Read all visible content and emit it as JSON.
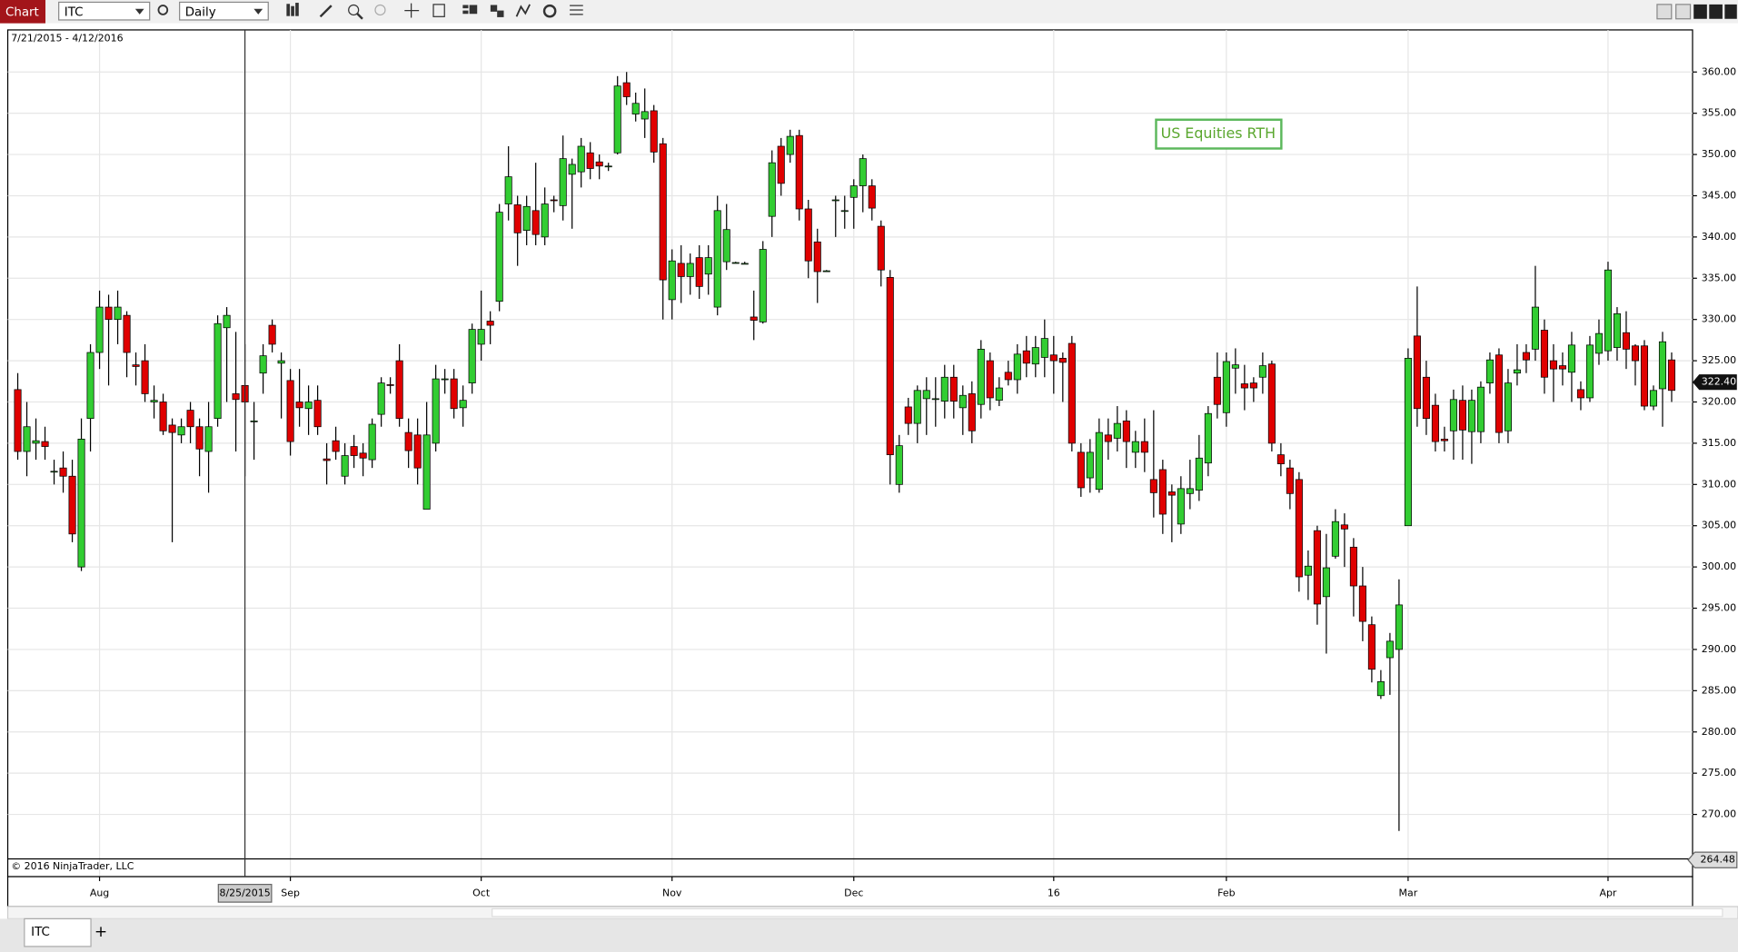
{
  "window": {
    "tab": "Chart",
    "symbol": "ITC",
    "interval": "Daily",
    "bottom_tab": "ITC",
    "new_tab": "+"
  },
  "chart_data": {
    "type": "candlestick",
    "range_label": "7/21/2015 - 4/12/2016",
    "session_label": "US Equities RTH",
    "copyright": "© 2016 NinjaTrader, LLC",
    "up_color": "#32cd32",
    "down_color": "#e00000",
    "grid": true,
    "open": [
      321.5,
      314,
      315,
      315.2,
      311.5,
      312,
      311,
      300,
      318,
      326,
      331.5,
      330,
      330.5,
      324.5,
      325,
      320,
      320,
      317.2,
      316,
      319,
      317,
      314,
      318,
      329,
      321,
      322,
      317.7,
      323.5,
      329.3,
      324.7,
      322.6,
      320,
      319.2,
      320.2,
      313.1,
      315.3,
      311,
      314.6,
      313.8,
      313,
      318.5,
      322.1,
      325,
      316.3,
      316,
      307,
      315,
      322.7,
      322.8,
      319.3,
      322.3,
      327,
      329.8,
      332.2,
      344,
      343.9,
      340.8,
      343.2,
      340,
      344.5,
      343.8,
      347.6,
      347.9,
      350.2,
      349.1,
      348.6,
      350.2,
      358.7,
      354.9,
      354.3,
      355.3,
      351.3,
      332.4,
      336.8,
      335.2,
      337.5,
      335.5,
      331.5,
      337,
      336.9,
      336.8,
      330.3,
      329.7,
      342.5,
      351,
      350,
      352.3,
      343.4,
      339.4,
      335.9,
      344.5,
      343.2,
      344.8,
      346.2,
      346.2,
      341.3,
      335.1,
      310,
      319.4,
      317.4,
      320.4,
      320.3,
      320.1,
      323,
      319.3,
      321,
      319.7,
      325,
      320.2,
      323.6,
      322.7,
      326.2,
      324.6,
      325.4,
      325.7,
      325.3,
      327.1,
      313.9,
      310.8,
      309.4,
      316,
      315.6,
      317.7,
      313.9,
      315.2,
      310.6,
      311.8,
      309.1,
      305.2,
      308.9,
      309.3,
      312.6,
      323,
      318.7,
      324.1,
      322.2,
      322.3,
      323,
      324.6,
      313.6,
      312,
      310.6,
      299,
      304.4,
      296.4,
      301.3,
      305.1,
      302.4,
      297.7,
      293,
      284.4,
      289,
      290,
      305,
      328,
      323,
      319.6,
      315.5,
      316.5,
      320.2,
      316.4,
      316.4,
      322.3,
      325.7,
      316.5,
      323.5,
      326,
      326.4,
      328.7,
      325,
      324.4,
      323.6,
      321.5,
      320.5,
      325.9,
      326.2,
      326.6,
      328.4,
      326.8,
      326.8,
      319.5,
      321.6,
      325.1
    ],
    "high": [
      323.5,
      320,
      318,
      317,
      313,
      314,
      313,
      318,
      327,
      333.5,
      333,
      333.5,
      331,
      326,
      327,
      322,
      321,
      318,
      318,
      320,
      318,
      320,
      330.5,
      331.5,
      328.5,
      327,
      320,
      327,
      330,
      326,
      324,
      324,
      322,
      322,
      315,
      317,
      315,
      316,
      315,
      318,
      323,
      323,
      327,
      318,
      318,
      320,
      324.5,
      324,
      324,
      322,
      329.5,
      333.5,
      331,
      344,
      351,
      345,
      345,
      349,
      346,
      345,
      352.3,
      349.5,
      352,
      351.5,
      350,
      349,
      359.5,
      360,
      357.5,
      358,
      356,
      352,
      338.5,
      339,
      338,
      339,
      339,
      345,
      344,
      337,
      337,
      333.5,
      339.5,
      350.5,
      352,
      353,
      353,
      344.5,
      341,
      336,
      345,
      345,
      347,
      350,
      347,
      342,
      336,
      316,
      320.5,
      322,
      323,
      323,
      324.5,
      324.5,
      322,
      322.5,
      327.5,
      326,
      323,
      325,
      327,
      328,
      328,
      330,
      328,
      326,
      328,
      315,
      315.5,
      318,
      318,
      319.5,
      319,
      316.5,
      318,
      319,
      313,
      310,
      311,
      313,
      316,
      319.5,
      326,
      326,
      326.5,
      324.5,
      323,
      326,
      325,
      315,
      313,
      311.5,
      302,
      305,
      304,
      307,
      306.5,
      303.5,
      300,
      294,
      287.5,
      292,
      298.5,
      326.5,
      334,
      325,
      321,
      317,
      321.5,
      322,
      321.5,
      322.5,
      326,
      326.5,
      324,
      327,
      327,
      336.5,
      330,
      327,
      326,
      328.5,
      322.5,
      328,
      330,
      337,
      331.5,
      331,
      327,
      327.5,
      322,
      328.5,
      326
    ],
    "low": [
      313,
      311,
      313,
      313,
      310,
      309,
      303,
      299.5,
      314,
      324,
      322,
      327,
      323,
      322,
      320,
      318,
      316,
      303,
      315,
      315,
      311,
      309,
      317,
      320,
      314,
      311,
      313,
      321,
      326,
      318,
      313.5,
      317,
      316,
      316,
      310,
      313,
      310,
      312,
      311,
      312,
      317,
      321,
      317,
      312,
      310,
      307,
      314,
      321,
      318,
      317,
      321,
      325,
      327,
      331,
      342,
      336.5,
      339,
      339,
      339,
      343,
      342,
      341,
      346,
      347,
      347,
      348,
      350,
      356,
      354,
      352,
      349,
      330,
      330,
      332,
      333,
      332.5,
      333,
      330.5,
      336,
      336.8,
      336.7,
      327.5,
      329.5,
      340,
      345,
      349,
      342,
      335,
      332,
      335.8,
      340,
      341,
      341,
      343,
      342,
      334,
      310,
      309,
      316,
      315,
      316,
      317,
      318,
      318,
      316,
      315,
      318,
      319,
      319.5,
      322,
      321,
      323,
      323,
      323,
      321,
      320,
      314,
      308.5,
      309,
      309,
      313,
      314,
      312,
      312,
      311.5,
      306,
      304,
      303,
      304,
      307,
      308,
      311,
      318,
      317,
      321,
      319,
      320,
      321,
      314,
      311,
      307,
      297,
      296,
      293,
      289.5,
      301,
      300,
      294,
      291,
      286,
      284,
      284.5,
      268,
      305,
      317,
      316,
      314,
      314,
      313,
      313,
      312.5,
      315,
      321,
      315,
      315,
      322,
      323.5,
      325,
      321,
      320,
      322,
      320,
      319,
      320,
      324.5,
      325,
      325,
      324,
      322,
      319,
      319,
      317,
      320
    ],
    "close": [
      314,
      317,
      315.3,
      314.6,
      311.6,
      311,
      304,
      315.5,
      326,
      331.5,
      330,
      331.5,
      326,
      324.3,
      321,
      320.2,
      316.5,
      316.3,
      317,
      317,
      314.3,
      317,
      329.5,
      330.5,
      320.3,
      320,
      317.7,
      325.6,
      327,
      325,
      315.2,
      319.3,
      320,
      317,
      312.9,
      314,
      313.5,
      313.5,
      313.2,
      317.3,
      322.3,
      322,
      318,
      314.1,
      312,
      316,
      322.8,
      322.8,
      319.2,
      320.2,
      328.8,
      328.8,
      329.3,
      343,
      347.3,
      340.5,
      343.7,
      340.3,
      344,
      344.4,
      349.5,
      348.8,
      351,
      348.3,
      348.6,
      348.6,
      358.3,
      357,
      356.2,
      355.2,
      350.3,
      334.8,
      337.1,
      335.2,
      336.8,
      334,
      337.5,
      343.2,
      340.9,
      336.9,
      336.8,
      329.9,
      338.5,
      349,
      346.5,
      352.2,
      343.4,
      337.1,
      335.8,
      335.9,
      344.5,
      343.2,
      346.2,
      349.5,
      343.5,
      336,
      313.6,
      314.7,
      317.4,
      321.4,
      321.4,
      320.4,
      323,
      320.1,
      320.8,
      316.5,
      326.4,
      320.5,
      321.7,
      322.7,
      325.8,
      324.7,
      326.6,
      327.7,
      325,
      324.8,
      315,
      309.6,
      313.9,
      316.3,
      315.2,
      317.4,
      315.2,
      315.2,
      313.9,
      309,
      306.4,
      308.7,
      309.5,
      309.5,
      313.2,
      318.6,
      319.7,
      324.9,
      324.5,
      321.7,
      321.7,
      324.4,
      315,
      312.5,
      308.9,
      298.8,
      300.1,
      295.5,
      299.9,
      305.5,
      304.6,
      297.7,
      293.4,
      287.6,
      286.1,
      291,
      295.4,
      325.3,
      319.2,
      318,
      315.2,
      315.3,
      320.3,
      316.6,
      320.2,
      321.8,
      325.1,
      316.3,
      322.3,
      323.9,
      325.1,
      331.5,
      323,
      324,
      324,
      326.9,
      320.5,
      326.9,
      328.3,
      336,
      330.7,
      326.4,
      325,
      319.5,
      321.4,
      327.3,
      321.4
    ],
    "xlim": [
      -1.1,
      184.3
    ],
    "xticks": [
      {
        "value": 9,
        "label": "Aug"
      },
      {
        "value": 30,
        "label": "Sep"
      },
      {
        "value": 51,
        "label": "Oct"
      },
      {
        "value": 72,
        "label": "Nov"
      },
      {
        "value": 92,
        "label": "Dec"
      },
      {
        "value": 114,
        "label": "16"
      },
      {
        "value": 133,
        "label": "Feb"
      },
      {
        "value": 153,
        "label": "Mar"
      },
      {
        "value": 175,
        "label": "Apr"
      }
    ],
    "ylim": [
      262.46,
      365.1
    ],
    "yticks": [
      {
        "value": 270,
        "label": "270.00"
      },
      {
        "value": 275,
        "label": "275.00"
      },
      {
        "value": 280,
        "label": "280.00"
      },
      {
        "value": 285,
        "label": "285.00"
      },
      {
        "value": 290,
        "label": "290.00"
      },
      {
        "value": 295,
        "label": "295.00"
      },
      {
        "value": 300,
        "label": "300.00"
      },
      {
        "value": 305,
        "label": "305.00"
      },
      {
        "value": 310,
        "label": "310.00"
      },
      {
        "value": 315,
        "label": "315.00"
      },
      {
        "value": 320,
        "label": "320.00"
      },
      {
        "value": 325,
        "label": "325.00"
      },
      {
        "value": 330,
        "label": "330.00"
      },
      {
        "value": 335,
        "label": "335.00"
      },
      {
        "value": 340,
        "label": "340.00"
      },
      {
        "value": 345,
        "label": "345.00"
      },
      {
        "value": 350,
        "label": "350.00"
      },
      {
        "value": 355,
        "label": "355.00"
      },
      {
        "value": 360,
        "label": "360.00"
      }
    ],
    "last_price": {
      "value": 322.4,
      "label": "322.40"
    },
    "cursor_price": {
      "value": 264.48,
      "label": "264.48"
    },
    "crosshair": {
      "value": 25,
      "label": "8/25/2015"
    }
  }
}
